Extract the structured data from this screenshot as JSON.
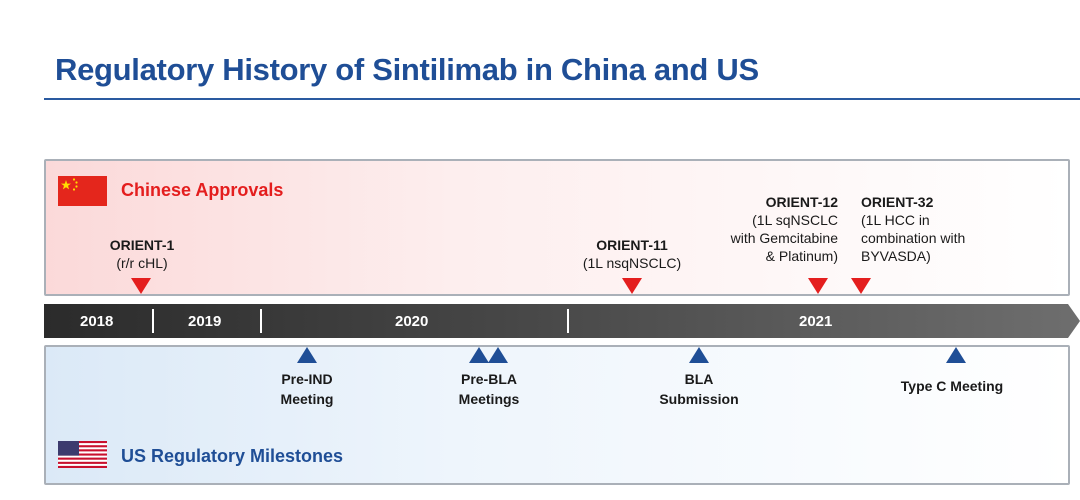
{
  "title": "Regulatory History of Sintilimab in China and US",
  "colors": {
    "title": "#1f4e96",
    "china_accent": "#e41e1e",
    "us_accent": "#1f4e96",
    "timeline": "#5a5a5a"
  },
  "china_section": {
    "label": "Chinese Approvals",
    "flag_icon": "china-flag-icon",
    "events": [
      {
        "name": "ORIENT-1",
        "desc": [
          "(r/r cHL)"
        ]
      },
      {
        "name": "ORIENT-11",
        "desc": [
          "(1L nsqNSCLC)"
        ]
      },
      {
        "name": "ORIENT-12",
        "desc": [
          "(1L sqNSCLC",
          "with Gemcitabine",
          "& Platinum)"
        ]
      },
      {
        "name": "ORIENT-32",
        "desc": [
          "(1L HCC in",
          "combination with",
          "BYVASDA)"
        ]
      }
    ]
  },
  "timeline": {
    "years": [
      "2018",
      "2019",
      "2020",
      "2021"
    ]
  },
  "us_section": {
    "label": "US Regulatory Milestones",
    "flag_icon": "us-flag-icon",
    "events": [
      {
        "lines": [
          "Pre-IND",
          "Meeting"
        ]
      },
      {
        "lines": [
          "Pre-BLA",
          "Meetings"
        ]
      },
      {
        "lines": [
          "BLA",
          "Submission"
        ]
      },
      {
        "lines": [
          "Type C Meeting"
        ]
      }
    ]
  }
}
